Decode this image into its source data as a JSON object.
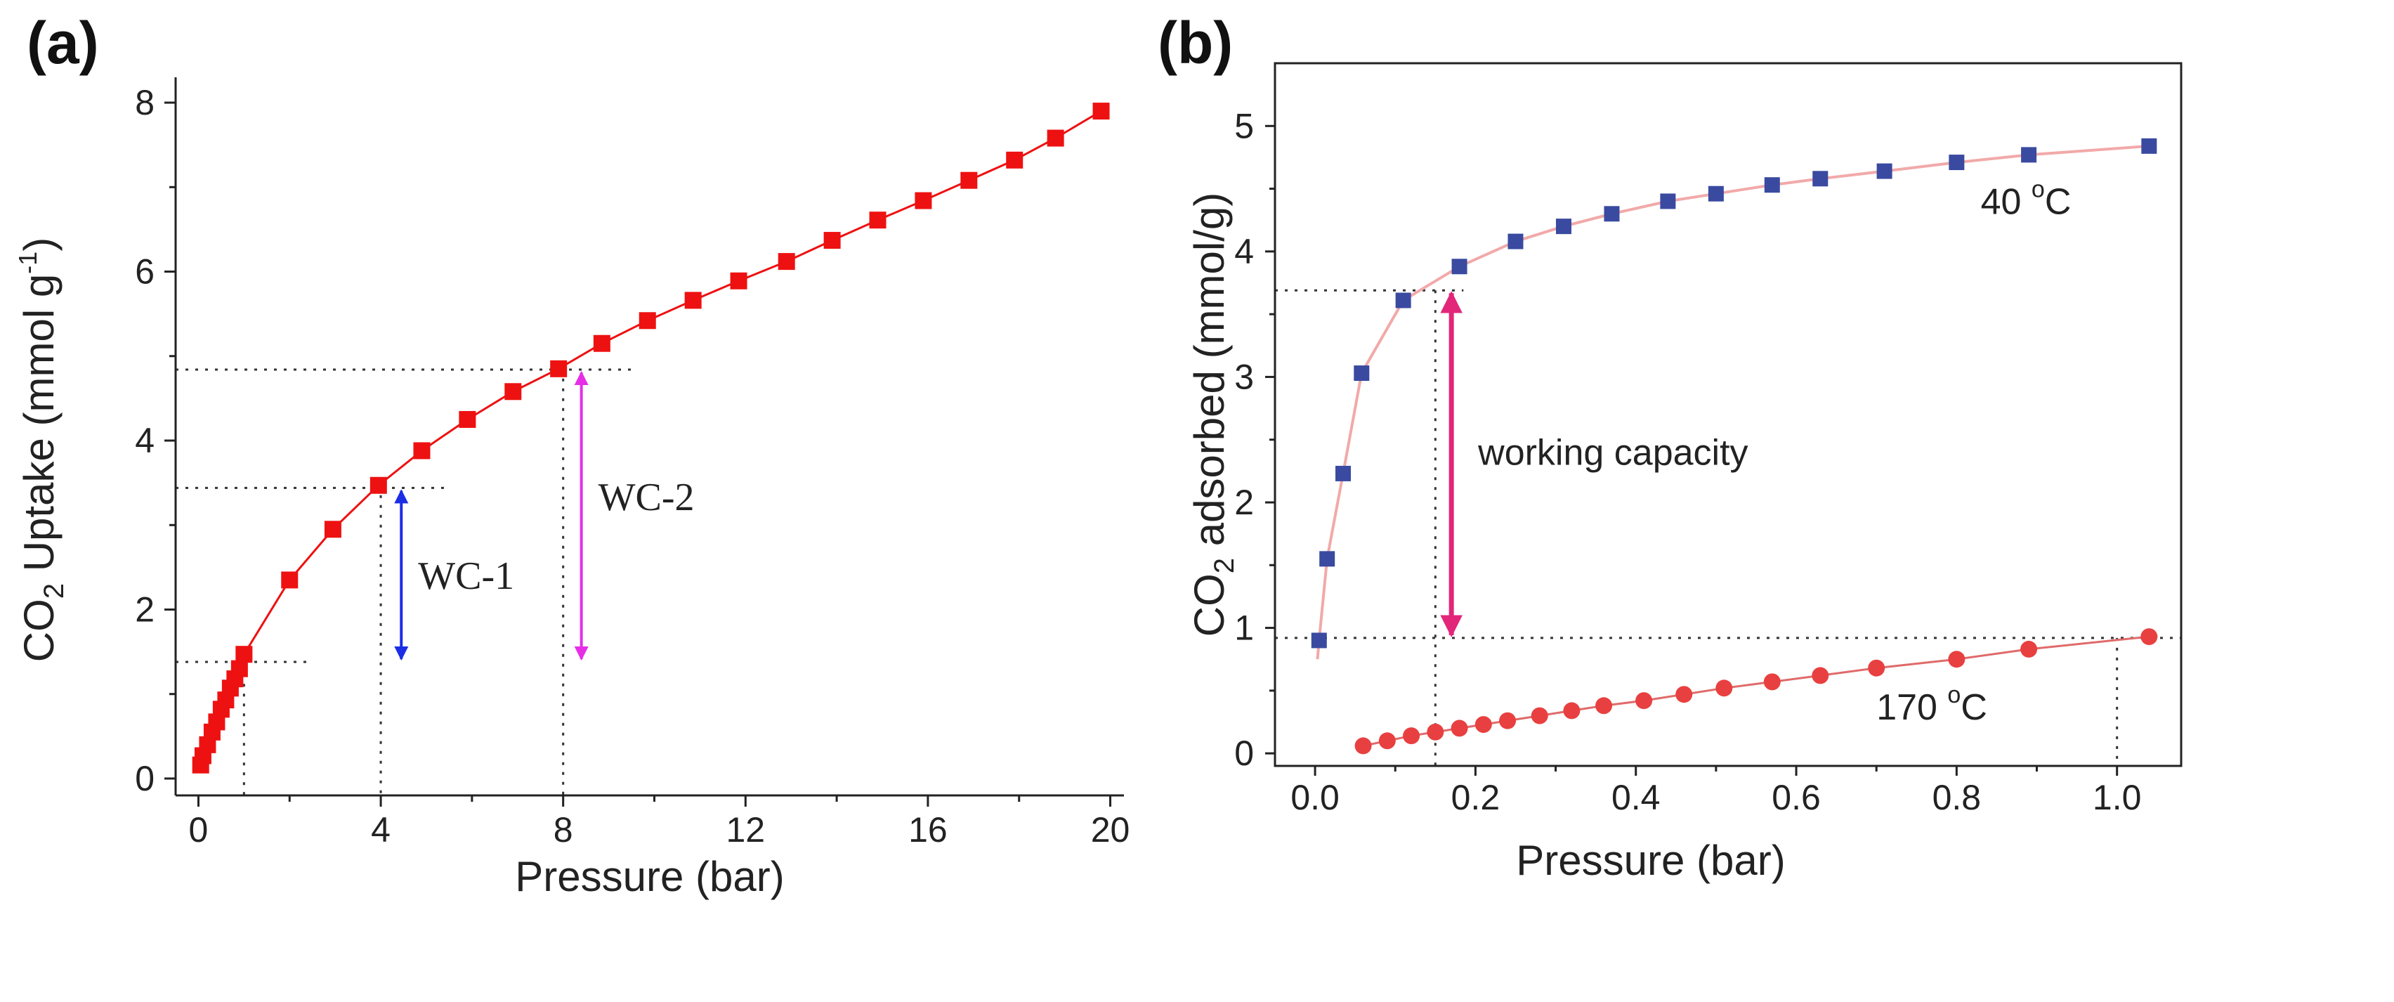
{
  "colors": {
    "series_a": "#ee1111",
    "series_b1": "#3a4aa0",
    "series_b2": "#e84040",
    "fit_b1": "#f2a9a9",
    "fit_b2": "#e06a6a",
    "wc1": "#1b2ee6",
    "wc2": "#e62ee6",
    "wc_b": "#e2267a",
    "guide": "#333333"
  },
  "chart_data": [
    {
      "panel_label": "(a)",
      "type": "line",
      "title": "",
      "xlabel": "Pressure (bar)",
      "ylabel_main": "CO",
      "ylabel_sub": "2",
      "ylabel_rest": " Uptake (mmol g",
      "ylabel_sup": "-1",
      "ylabel_end": ")",
      "xlim": [
        -0.5,
        20.3
      ],
      "ylim": [
        -0.2,
        8.3
      ],
      "xticks": [
        0,
        4,
        8,
        12,
        16,
        20
      ],
      "xtick_labels": [
        "0",
        "4",
        "8",
        "12",
        "16",
        "20"
      ],
      "yticks": [
        0,
        2,
        4,
        6,
        8
      ],
      "ytick_labels": [
        "0",
        "2",
        "4",
        "6",
        "8"
      ],
      "series": [
        {
          "name": "CO2 uptake",
          "x": [
            0.05,
            0.1,
            0.2,
            0.3,
            0.4,
            0.5,
            0.6,
            0.7,
            0.8,
            0.9,
            1.0,
            2.0,
            2.95,
            3.95,
            4.9,
            5.9,
            6.9,
            7.9,
            8.85,
            9.85,
            10.85,
            11.85,
            12.9,
            13.9,
            14.9,
            15.9,
            16.9,
            17.9,
            18.8,
            19.8
          ],
          "y": [
            0.16,
            0.27,
            0.4,
            0.55,
            0.67,
            0.82,
            0.93,
            1.07,
            1.18,
            1.3,
            1.47,
            2.35,
            2.95,
            3.47,
            3.88,
            4.25,
            4.58,
            4.85,
            5.15,
            5.42,
            5.66,
            5.89,
            6.12,
            6.37,
            6.61,
            6.84,
            7.08,
            7.32,
            7.58,
            7.9
          ]
        }
      ],
      "guides": {
        "y_levels": [
          1.38,
          3.44,
          4.84
        ],
        "x_levels": [
          1.0,
          4.0,
          8.0
        ]
      },
      "annotations": [
        {
          "label": "WC-1",
          "x": 4.45,
          "y_from": 1.38,
          "y_to": 3.44
        },
        {
          "label": "WC-2",
          "x": 8.4,
          "y_from": 1.38,
          "y_to": 4.84
        }
      ]
    },
    {
      "panel_label": "(b)",
      "type": "scatter",
      "title": "",
      "xlabel": "Pressure (bar)",
      "ylabel_main": "CO",
      "ylabel_sub": "2",
      "ylabel_rest": " adsorbed (mmol/g)",
      "xlim": [
        -0.05,
        1.08
      ],
      "ylim": [
        -0.1,
        5.5
      ],
      "xticks": [
        0.0,
        0.2,
        0.4,
        0.6,
        0.8,
        1.0
      ],
      "xtick_labels": [
        "0.0",
        "0.2",
        "0.4",
        "0.6",
        "0.8",
        "1.0"
      ],
      "yticks": [
        0,
        1,
        2,
        3,
        4,
        5
      ],
      "ytick_labels": [
        "0",
        "1",
        "2",
        "3",
        "4",
        "5"
      ],
      "series": [
        {
          "name": "40 °C",
          "label_main": "40 ",
          "label_sup": "o",
          "label_end": "C",
          "label_at": [
            0.83,
            4.3
          ],
          "x": [
            0.005,
            0.015,
            0.035,
            0.058,
            0.11,
            0.18,
            0.25,
            0.31,
            0.37,
            0.44,
            0.5,
            0.57,
            0.63,
            0.71,
            0.8,
            0.89,
            1.04
          ],
          "y": [
            0.9,
            1.55,
            2.23,
            3.03,
            3.61,
            3.88,
            4.08,
            4.2,
            4.3,
            4.4,
            4.46,
            4.53,
            4.58,
            4.64,
            4.71,
            4.77,
            4.84
          ]
        },
        {
          "name": "170 °C",
          "label_main": "170 ",
          "label_sup": "o",
          "label_end": "C",
          "label_at": [
            0.7,
            0.27
          ],
          "x": [
            0.06,
            0.09,
            0.12,
            0.15,
            0.18,
            0.21,
            0.24,
            0.28,
            0.32,
            0.36,
            0.41,
            0.46,
            0.51,
            0.57,
            0.63,
            0.7,
            0.8,
            0.89,
            1.04
          ],
          "y": [
            0.06,
            0.1,
            0.14,
            0.17,
            0.2,
            0.23,
            0.26,
            0.3,
            0.34,
            0.38,
            0.42,
            0.47,
            0.52,
            0.57,
            0.62,
            0.68,
            0.75,
            0.83,
            0.93
          ]
        }
      ],
      "guides": {
        "y_levels": [
          3.69,
          0.92
        ],
        "x_levels": [
          0.15,
          1.0
        ]
      },
      "annotations": [
        {
          "label": "working capacity",
          "x": 0.17,
          "y_from": 0.92,
          "y_to": 3.69
        }
      ]
    }
  ]
}
